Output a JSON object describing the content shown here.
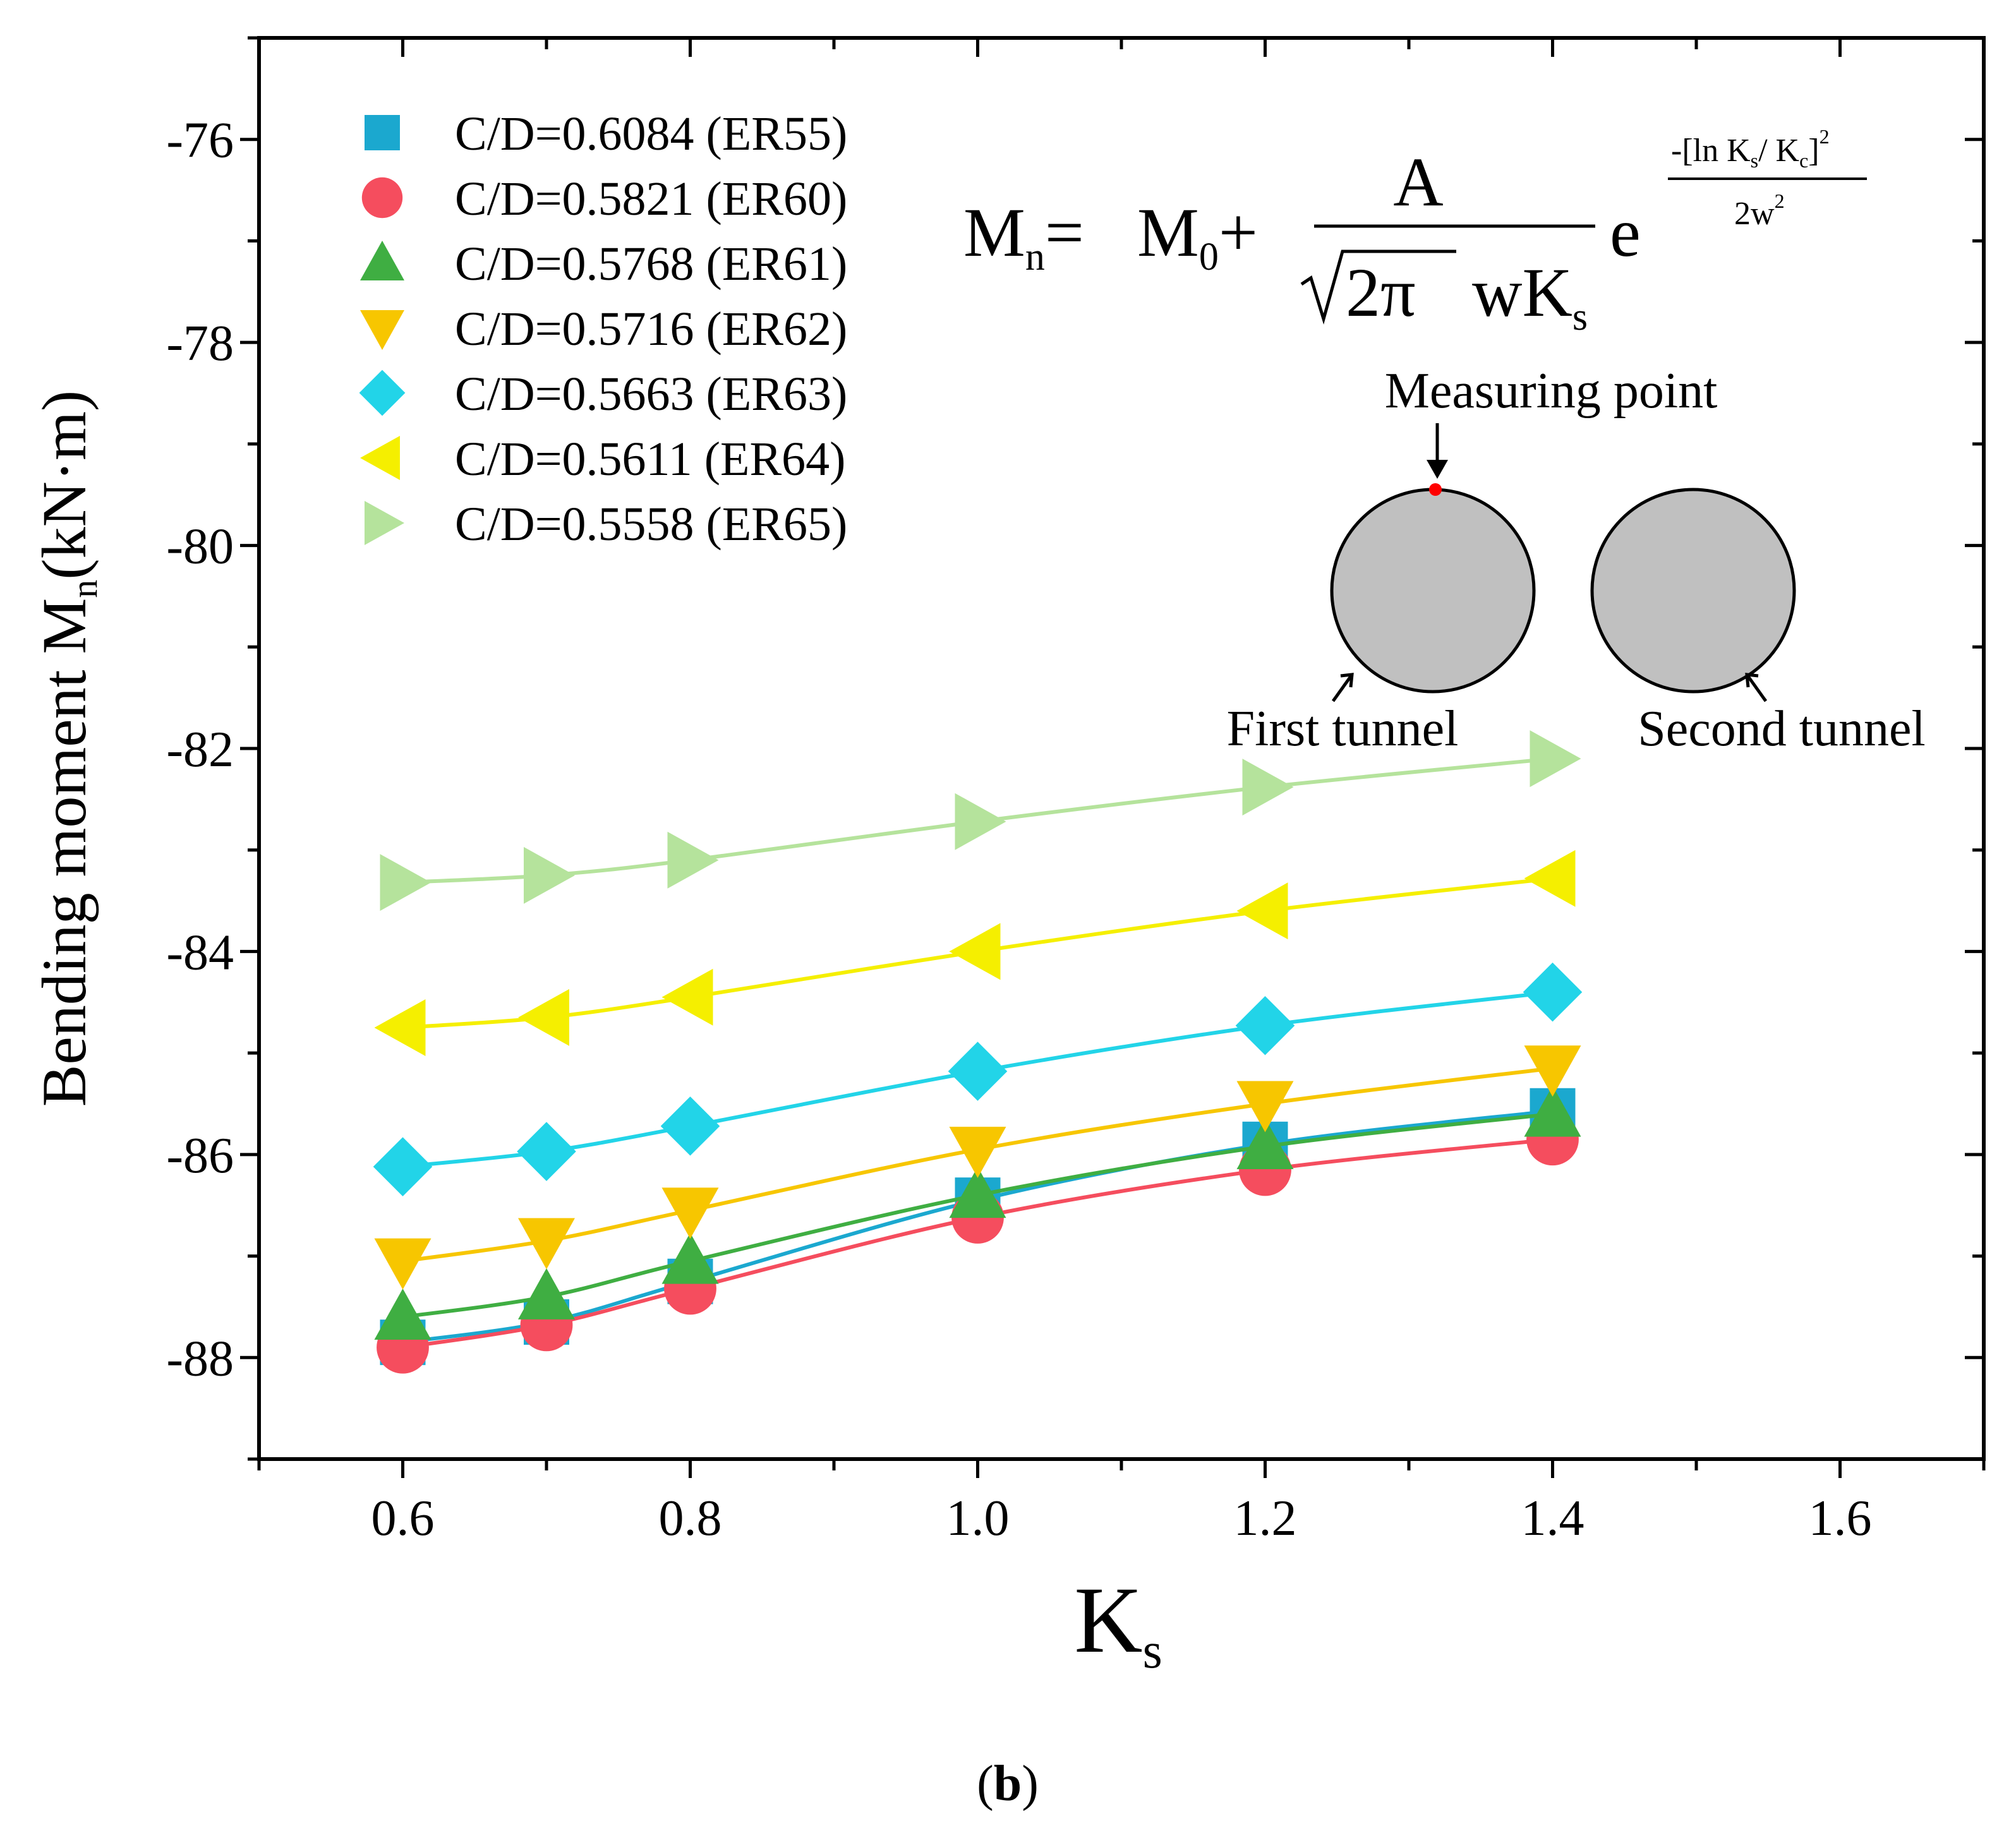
{
  "chart_data": {
    "type": "line",
    "title": "",
    "panel_label": {
      "open": "(",
      "letter": "b",
      "close": ")"
    },
    "xlabel": {
      "main": "K",
      "sub": "s"
    },
    "ylabel": {
      "main": "Bending moment M",
      "sub": "n",
      "unit": "(kN·m)"
    },
    "xlim": [
      0.5,
      1.7
    ],
    "ylim": [
      -89,
      -75
    ],
    "xticks": [
      0.6,
      0.8,
      1.0,
      1.2,
      1.4,
      1.6
    ],
    "xtick_labels": [
      "0.6",
      "0.8",
      "1.0",
      "1.2",
      "1.4",
      "1.6"
    ],
    "yticks": [
      -76,
      -78,
      -80,
      -82,
      -84,
      -86,
      -88
    ],
    "ytick_labels": [
      "-76",
      "-78",
      "-80",
      "-82",
      "-84",
      "-86",
      "-88"
    ],
    "x": [
      0.6,
      0.7,
      0.8,
      1.0,
      1.2,
      1.4
    ],
    "series": [
      {
        "name": "C/D=0.6084 (ER55)",
        "marker": "square",
        "color": "#1ba8cf",
        "values": [
          -87.85,
          -87.65,
          -87.25,
          -86.45,
          -85.9,
          -85.57
        ]
      },
      {
        "name": "C/D=0.5821 (ER60)",
        "marker": "circle",
        "color": "#f54d5e",
        "values": [
          -87.9,
          -87.68,
          -87.32,
          -86.62,
          -86.15,
          -85.85
        ]
      },
      {
        "name": "C/D=0.5768 (ER61)",
        "marker": "triangle-up",
        "color": "#3fae42",
        "values": [
          -87.6,
          -87.4,
          -87.05,
          -86.4,
          -85.92,
          -85.6
        ]
      },
      {
        "name": "C/D=0.5716 (ER62)",
        "marker": "triangle-down",
        "color": "#f7c600",
        "values": [
          -87.05,
          -86.85,
          -86.55,
          -85.95,
          -85.5,
          -85.15
        ]
      },
      {
        "name": "C/D=0.5663 (ER63)",
        "marker": "diamond",
        "color": "#22d4e8",
        "values": [
          -86.12,
          -85.97,
          -85.72,
          -85.18,
          -84.73,
          -84.4
        ]
      },
      {
        "name": "C/D=0.5611 (ER64)",
        "marker": "triangle-left",
        "color": "#f5ef00",
        "values": [
          -84.75,
          -84.65,
          -84.45,
          -84.0,
          -83.6,
          -83.28
        ]
      },
      {
        "name": "C/D=0.5558 (ER65)",
        "marker": "triangle-right",
        "color": "#b5e39c",
        "values": [
          -83.32,
          -83.25,
          -83.1,
          -82.72,
          -82.38,
          -82.1
        ]
      }
    ],
    "formula": {
      "lhs_main": "M",
      "lhs_sub": "n",
      "equals": "=",
      "m0_main": "M",
      "m0_sub": "0",
      "plus": "+",
      "numerator": "A",
      "denominator_rest": "wK",
      "denominator_sub": "s",
      "sqrt_arg": "2π",
      "e": "e",
      "exp_num_prefix": "-[ln K",
      "exp_num_sub1": "s",
      "exp_num_mid": "/ K",
      "exp_num_sub2": "c",
      "exp_num_suffix": "]",
      "exp_num_power": "2",
      "exp_den_main": "2w",
      "exp_den_power": "2"
    },
    "inset": {
      "measuring_point_label": "Measuring point",
      "first_tunnel_label": "First tunnel",
      "second_tunnel_label": "Second tunnel",
      "tunnel_fill": "#c0c0c0",
      "point_color": "#ff0000"
    }
  }
}
